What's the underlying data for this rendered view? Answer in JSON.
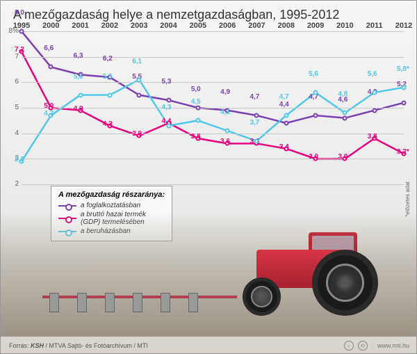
{
  "title": "A mezőgazdaság helye a nemzetgazdaságban, 1995-2012",
  "chart": {
    "type": "line",
    "years": [
      "1995",
      "2000",
      "2001",
      "2002",
      "2003",
      "2004",
      "2005",
      "2006",
      "2007",
      "2008",
      "2009",
      "2010",
      "2011",
      "2012"
    ],
    "ylim": [
      2,
      8
    ],
    "ytick_step": 1,
    "y_unit": "%",
    "x_count": 14,
    "background_color": "#f0f0f0",
    "grid_color": "#c8c8c8",
    "label_fontsize": 10,
    "title_fontsize": 18,
    "series": [
      {
        "key": "employment",
        "label": "a foglalkoztatásban",
        "color": "#7b3fb0",
        "line_width": 2.5,
        "values": [
          8.0,
          6.6,
          6.3,
          6.2,
          5.5,
          5.3,
          5.0,
          4.9,
          4.7,
          4.4,
          4.7,
          4.6,
          4.9,
          5.2
        ]
      },
      {
        "key": "gdp",
        "label": "a bruttó hazai termék (GDP) termelésében",
        "color": "#e6007e",
        "line_width": 2.5,
        "values": [
          7.2,
          5.0,
          4.9,
          4.3,
          3.9,
          4.4,
          3.8,
          3.6,
          3.6,
          3.4,
          3.0,
          3.0,
          3.8,
          3.2
        ],
        "last_suffix": "*"
      },
      {
        "key": "investment",
        "label": "a beruházásban",
        "color": "#50c8e8",
        "line_width": 2.5,
        "values": [
          2.9,
          4.7,
          5.5,
          5.5,
          6.1,
          4.3,
          4.5,
          4.1,
          3.7,
          4.7,
          5.6,
          4.8,
          5.6,
          5.8
        ],
        "last_suffix": "*"
      }
    ]
  },
  "legend": {
    "title": "A mezőgazdaság részaránya:"
  },
  "footnote": "*előzetes adat",
  "source": {
    "prefix": "Forrás: ",
    "bold": "KSH",
    "rest": " / MTVA Sajtó- és Fotóarchívum / MTI"
  },
  "footer": {
    "site": "www.mti.hu"
  }
}
